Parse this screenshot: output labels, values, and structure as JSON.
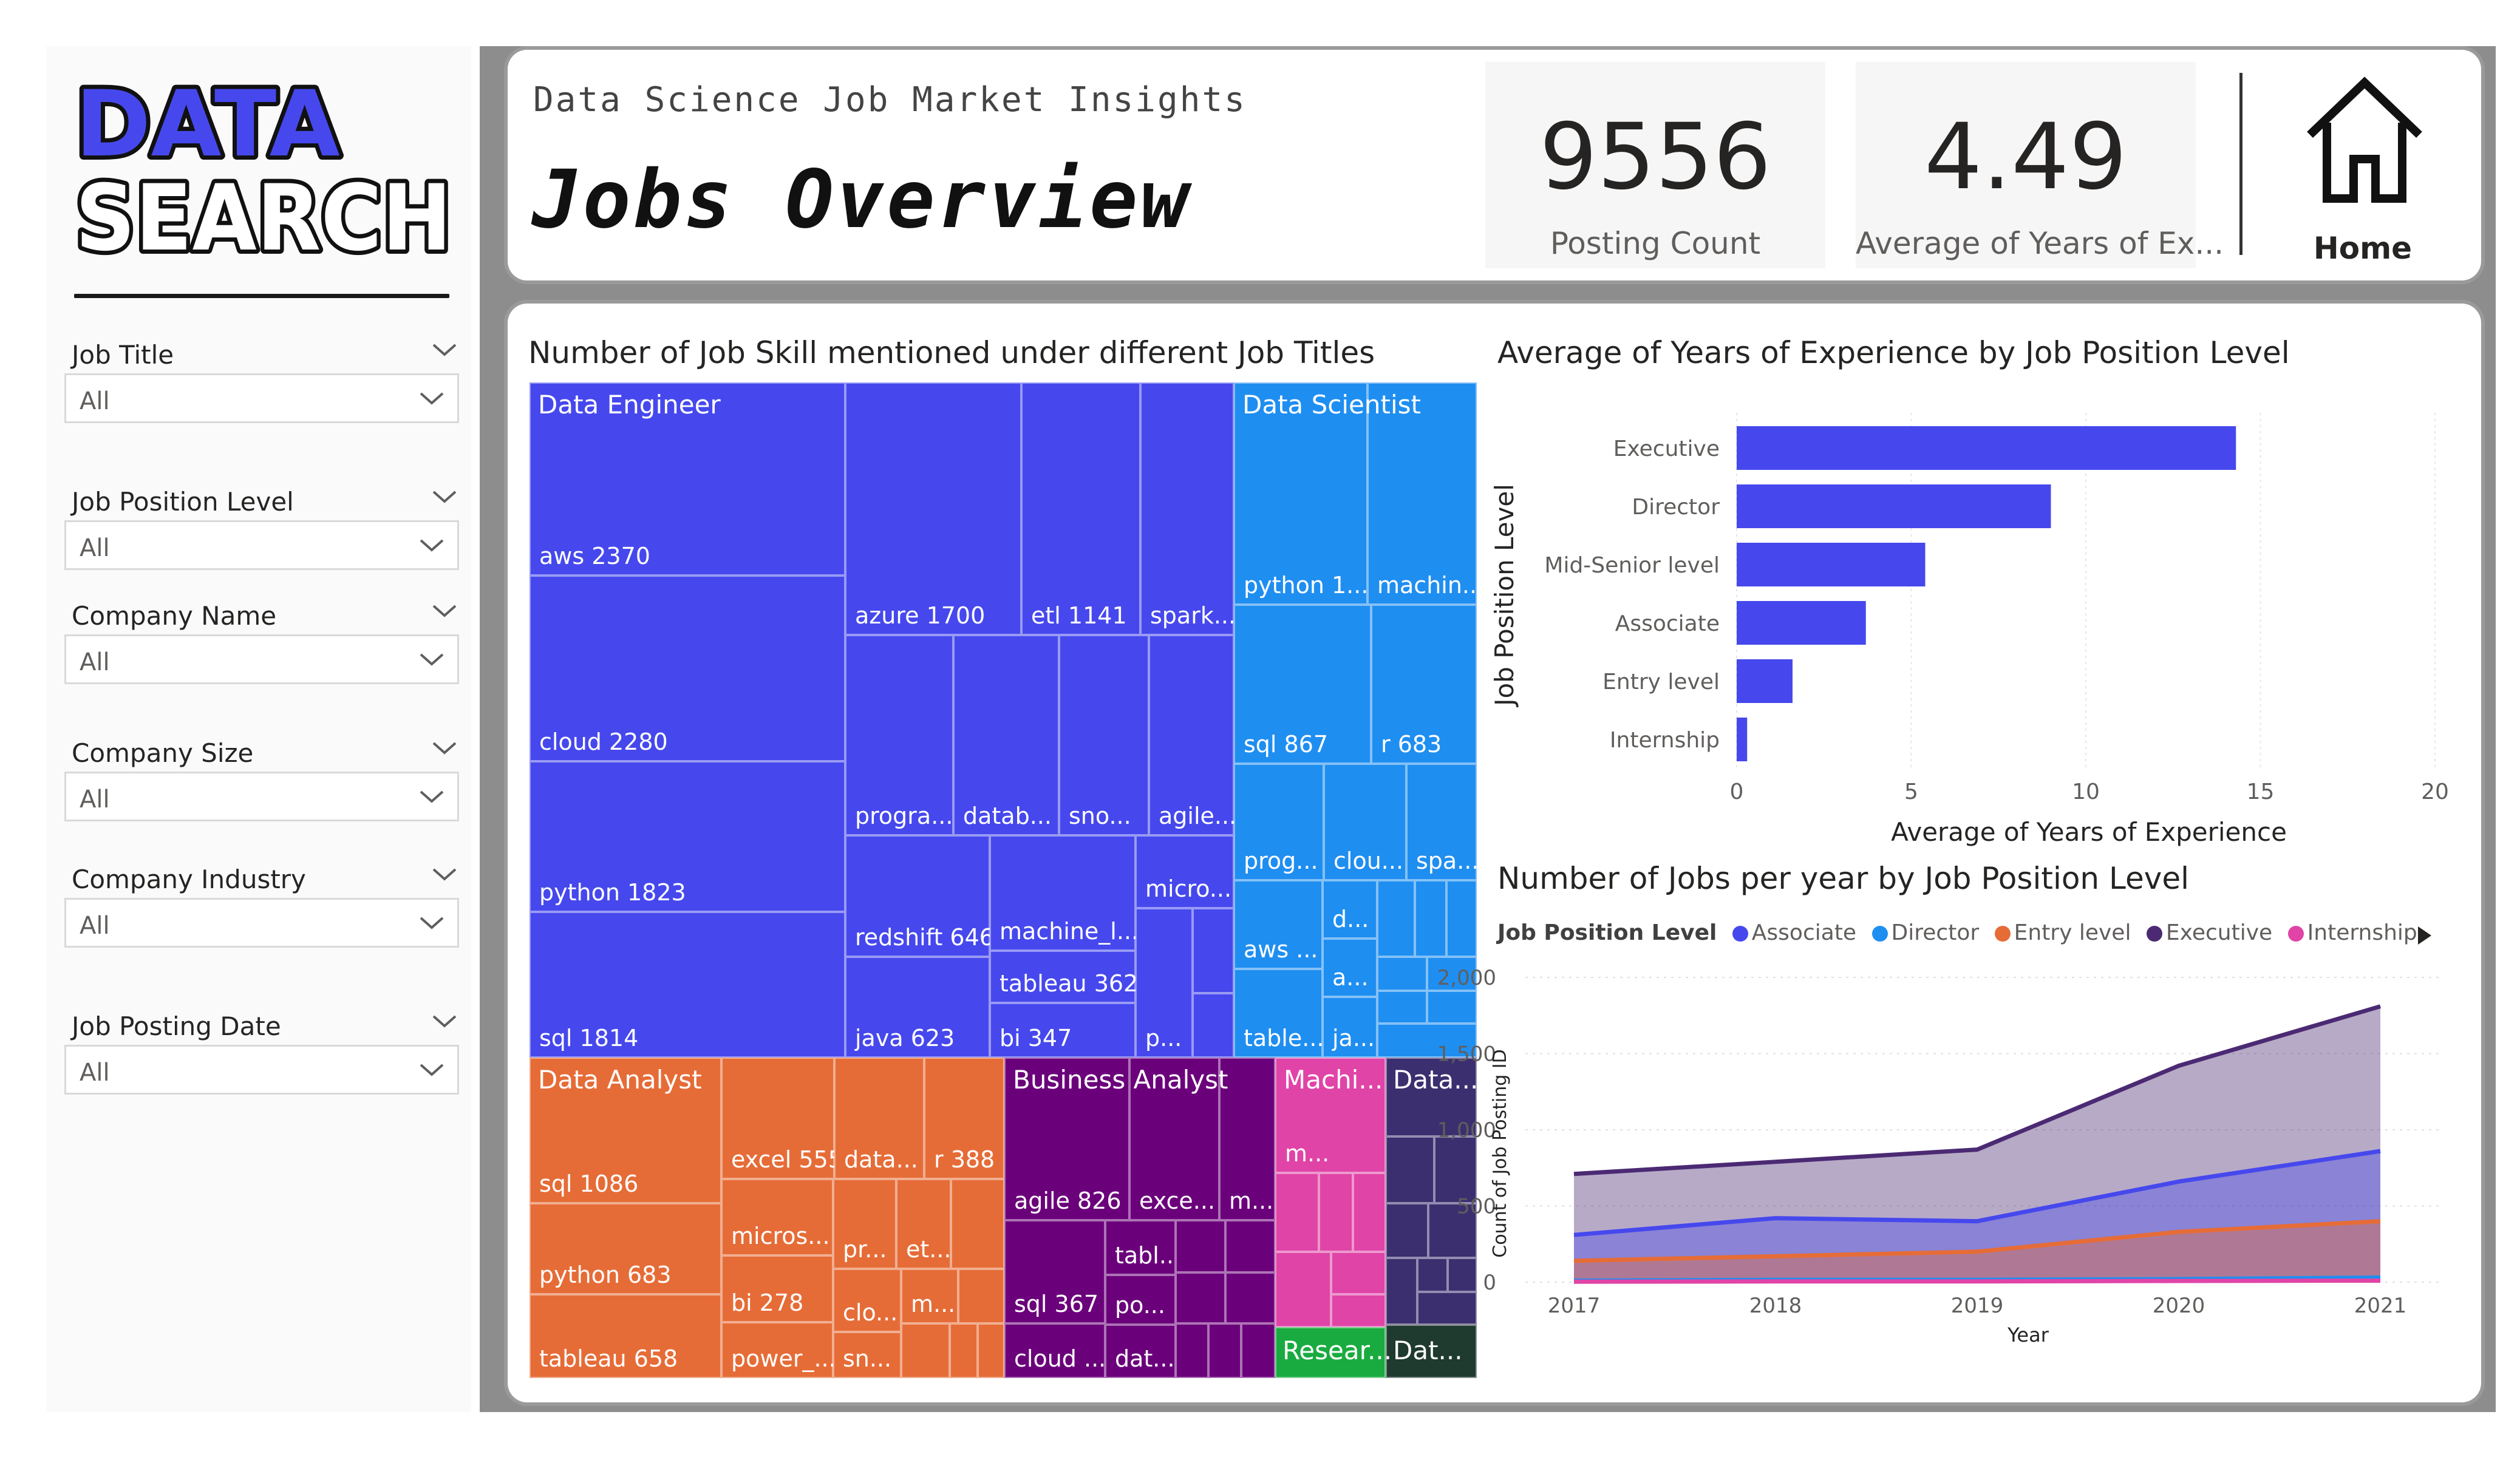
{
  "sidebar": {
    "logo_line1": "DATA",
    "logo_line2": "SEARCH",
    "filters": [
      {
        "title": "Job Title",
        "value": "All"
      },
      {
        "title": "Job Position Level",
        "value": "All"
      },
      {
        "title": "Company Name",
        "value": "All"
      },
      {
        "title": "Company Size",
        "value": "All"
      },
      {
        "title": "Company Industry",
        "value": "All"
      },
      {
        "title": "Job Posting Date",
        "value": "All"
      }
    ]
  },
  "header": {
    "subtitle": "Data Science Job Market Insights",
    "title": "Jobs Overview",
    "kpis": [
      {
        "value": "9556",
        "label": "Posting Count"
      },
      {
        "value": "4.49",
        "label": "Average of Years of Ex..."
      }
    ],
    "home_label": "Home",
    "home_icon": "home-icon"
  },
  "colors": {
    "data_engineer": "#4648ed",
    "data_scientist": "#1f8ef1",
    "data_analyst": "#e66c37",
    "business_analyst": "#6b007b",
    "machine_learning": "#e044a7",
    "data_other": "#3c2f6f",
    "research": "#1aab40",
    "bar": "#4648ed",
    "associate": "#4648ed",
    "director": "#1f8ef1",
    "entry_level": "#e66c37",
    "executive": "#4b2a73",
    "internship": "#e044a7"
  },
  "treemap": {
    "title": "Number of Job Skill mentioned under different Job Titles",
    "groups": {
      "de": "Data Engineer",
      "ds": "Data Scientist",
      "da": "Data Analyst",
      "ba": "Business Analyst",
      "ml": "Machi...",
      "dt": "Data...",
      "rs": "Resear...",
      "dt2": "Dat..."
    },
    "tiles": {
      "de_aws": "aws 2370",
      "de_cloud": "cloud 2280",
      "de_python": "python 1823",
      "de_sql": "sql 1814",
      "de_azure": "azure 1700",
      "de_etl": "etl 1141",
      "de_spark": "spark...",
      "de_progra": "progra...",
      "de_datab": "datab...",
      "de_sno": "sno...",
      "de_agile": "agile...",
      "de_redshift": "redshift 646",
      "de_machine": "machine_l...",
      "de_micro": "micro...",
      "de_tableau": "tableau 362",
      "de_java": "java 623",
      "de_bi": "bi 347",
      "de_p": "p...",
      "ds_python": "python 1...",
      "ds_machin": "machin...",
      "ds_sql": "sql 867",
      "ds_r": "r 683",
      "ds_prog": "prog...",
      "ds_clou": "clou...",
      "ds_spa": "spa...",
      "ds_aws": "aws ...",
      "ds_d": "d...",
      "ds_a": "a...",
      "ds_table": "table...",
      "ds_ja": "ja...",
      "da_sql": "sql 1086",
      "da_python": "python 683",
      "da_tableau": "tableau 658",
      "da_excel": "excel 555",
      "da_data": "data...",
      "da_r": "r 388",
      "da_micros": "micros...",
      "da_bi": "bi 278",
      "da_power": "power_...",
      "da_pr": "pr...",
      "da_et": "et...",
      "da_clo": "clo...",
      "da_m": "m...",
      "da_sn": "sn...",
      "ba_agile": "agile 826",
      "ba_exce": "exce...",
      "ba_m": "m...",
      "ba_sql": "sql 367",
      "ba_tabl": "tabl...",
      "ba_po": "po...",
      "ba_cloud": "cloud ...",
      "ba_dat": "dat...",
      "ml_m": "m..."
    }
  },
  "bar_chart": {
    "title": "Average of Years of Experience by Job Position Level",
    "ylabel": "Job Position Level",
    "xlabel": "Average of Years of Experience",
    "categories": [
      "Executive",
      "Director",
      "Mid-Senior level",
      "Associate",
      "Entry level",
      "Internship"
    ],
    "values": [
      14.3,
      9.0,
      5.4,
      3.7,
      1.6,
      0.3
    ],
    "xlim": [
      0,
      20
    ],
    "ticks": [
      "0",
      "5",
      "10",
      "15",
      "20"
    ]
  },
  "area_chart": {
    "title": "Number of Jobs per year by Job Position Level",
    "legend_title": "Job Position Level",
    "xlabel": "Year",
    "ylabel": "Count of Job Posting ID",
    "x": [
      "2017",
      "2018",
      "2019",
      "2020",
      "2021"
    ],
    "yticks": [
      "0",
      "500",
      "1,000",
      "1,500",
      "2,000"
    ],
    "ylim": [
      0,
      2000
    ],
    "series": [
      {
        "name": "Executive",
        "values": [
          710,
          790,
          870,
          1420,
          1810
        ]
      },
      {
        "name": "Associate",
        "values": [
          310,
          420,
          400,
          660,
          860
        ]
      },
      {
        "name": "Entry level",
        "values": [
          140,
          170,
          200,
          330,
          400
        ]
      },
      {
        "name": "Director",
        "values": [
          10,
          15,
          15,
          20,
          30
        ]
      },
      {
        "name": "Internship",
        "values": [
          3,
          5,
          5,
          8,
          10
        ]
      }
    ],
    "legend": [
      {
        "name": "Associate",
        "color": "#4648ed"
      },
      {
        "name": "Director",
        "color": "#1f8ef1"
      },
      {
        "name": "Entry level",
        "color": "#e66c37"
      },
      {
        "name": "Executive",
        "color": "#4b2a73"
      },
      {
        "name": "Internship",
        "color": "#e044a7"
      }
    ]
  },
  "chart_data": [
    {
      "type": "bar",
      "title": "Average of Years of Experience by Job Position Level",
      "categories": [
        "Executive",
        "Director",
        "Mid-Senior level",
        "Associate",
        "Entry level",
        "Internship"
      ],
      "values": [
        14.3,
        9.0,
        5.4,
        3.7,
        1.6,
        0.3
      ],
      "xlabel": "Average of Years of Experience",
      "ylabel": "Job Position Level",
      "xlim": [
        0,
        20
      ],
      "orientation": "horizontal",
      "grid": true
    },
    {
      "type": "area",
      "title": "Number of Jobs per year by Job Position Level",
      "x": [
        "2017",
        "2018",
        "2019",
        "2020",
        "2021"
      ],
      "series": [
        {
          "name": "Associate",
          "values": [
            310,
            420,
            400,
            660,
            860
          ]
        },
        {
          "name": "Director",
          "values": [
            10,
            15,
            15,
            20,
            30
          ]
        },
        {
          "name": "Entry level",
          "values": [
            140,
            170,
            200,
            330,
            400
          ]
        },
        {
          "name": "Executive",
          "values": [
            710,
            790,
            870,
            1420,
            1810
          ]
        },
        {
          "name": "Internship",
          "values": [
            3,
            5,
            5,
            8,
            10
          ]
        }
      ],
      "xlabel": "Year",
      "ylabel": "Count of Job Posting ID",
      "ylim": [
        0,
        2000
      ],
      "legend": "top",
      "grid": true
    },
    {
      "type": "treemap",
      "title": "Number of Job Skill mentioned under different Job Titles",
      "groups": [
        {
          "name": "Data Engineer",
          "items": [
            [
              "aws",
              2370
            ],
            [
              "cloud",
              2280
            ],
            [
              "python",
              1823
            ],
            [
              "sql",
              1814
            ],
            [
              "azure",
              1700
            ],
            [
              "etl",
              1141
            ],
            [
              "redshift",
              646
            ],
            [
              "java",
              623
            ],
            [
              "tableau",
              362
            ],
            [
              "bi",
              347
            ]
          ]
        },
        {
          "name": "Data Scientist",
          "items": [
            [
              "sql",
              867
            ],
            [
              "r",
              683
            ]
          ]
        },
        {
          "name": "Data Analyst",
          "items": [
            [
              "sql",
              1086
            ],
            [
              "python",
              683
            ],
            [
              "tableau",
              658
            ],
            [
              "excel",
              555
            ],
            [
              "r",
              388
            ],
            [
              "bi",
              278
            ]
          ]
        },
        {
          "name": "Business Analyst",
          "items": [
            [
              "agile",
              826
            ],
            [
              "sql",
              367
            ]
          ]
        }
      ]
    }
  ]
}
